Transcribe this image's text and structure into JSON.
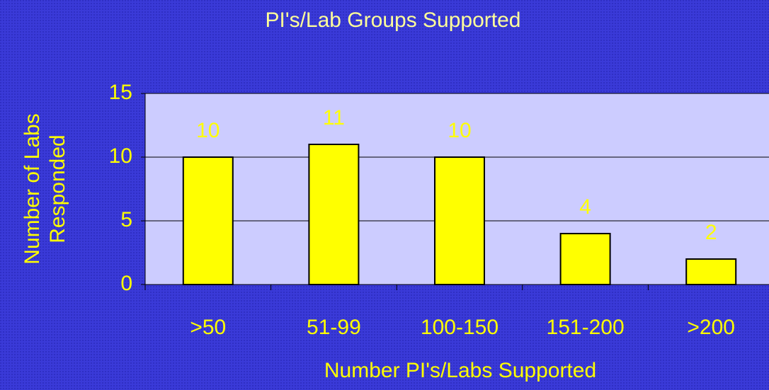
{
  "chart_data": {
    "type": "bar",
    "title": "PI's/Lab Groups Supported",
    "x_label": "Number PI's/Labs Supported",
    "y_label": [
      "Number of Labs",
      "Responded"
    ],
    "categories": [
      ">50",
      "51-99",
      "100-150",
      "151-200",
      ">200"
    ],
    "values": [
      10,
      11,
      10,
      4,
      2
    ],
    "color": "#ffff00",
    "ylim": [
      0,
      15
    ],
    "yticks": [
      0,
      5,
      10,
      15
    ],
    "grid": true
  }
}
